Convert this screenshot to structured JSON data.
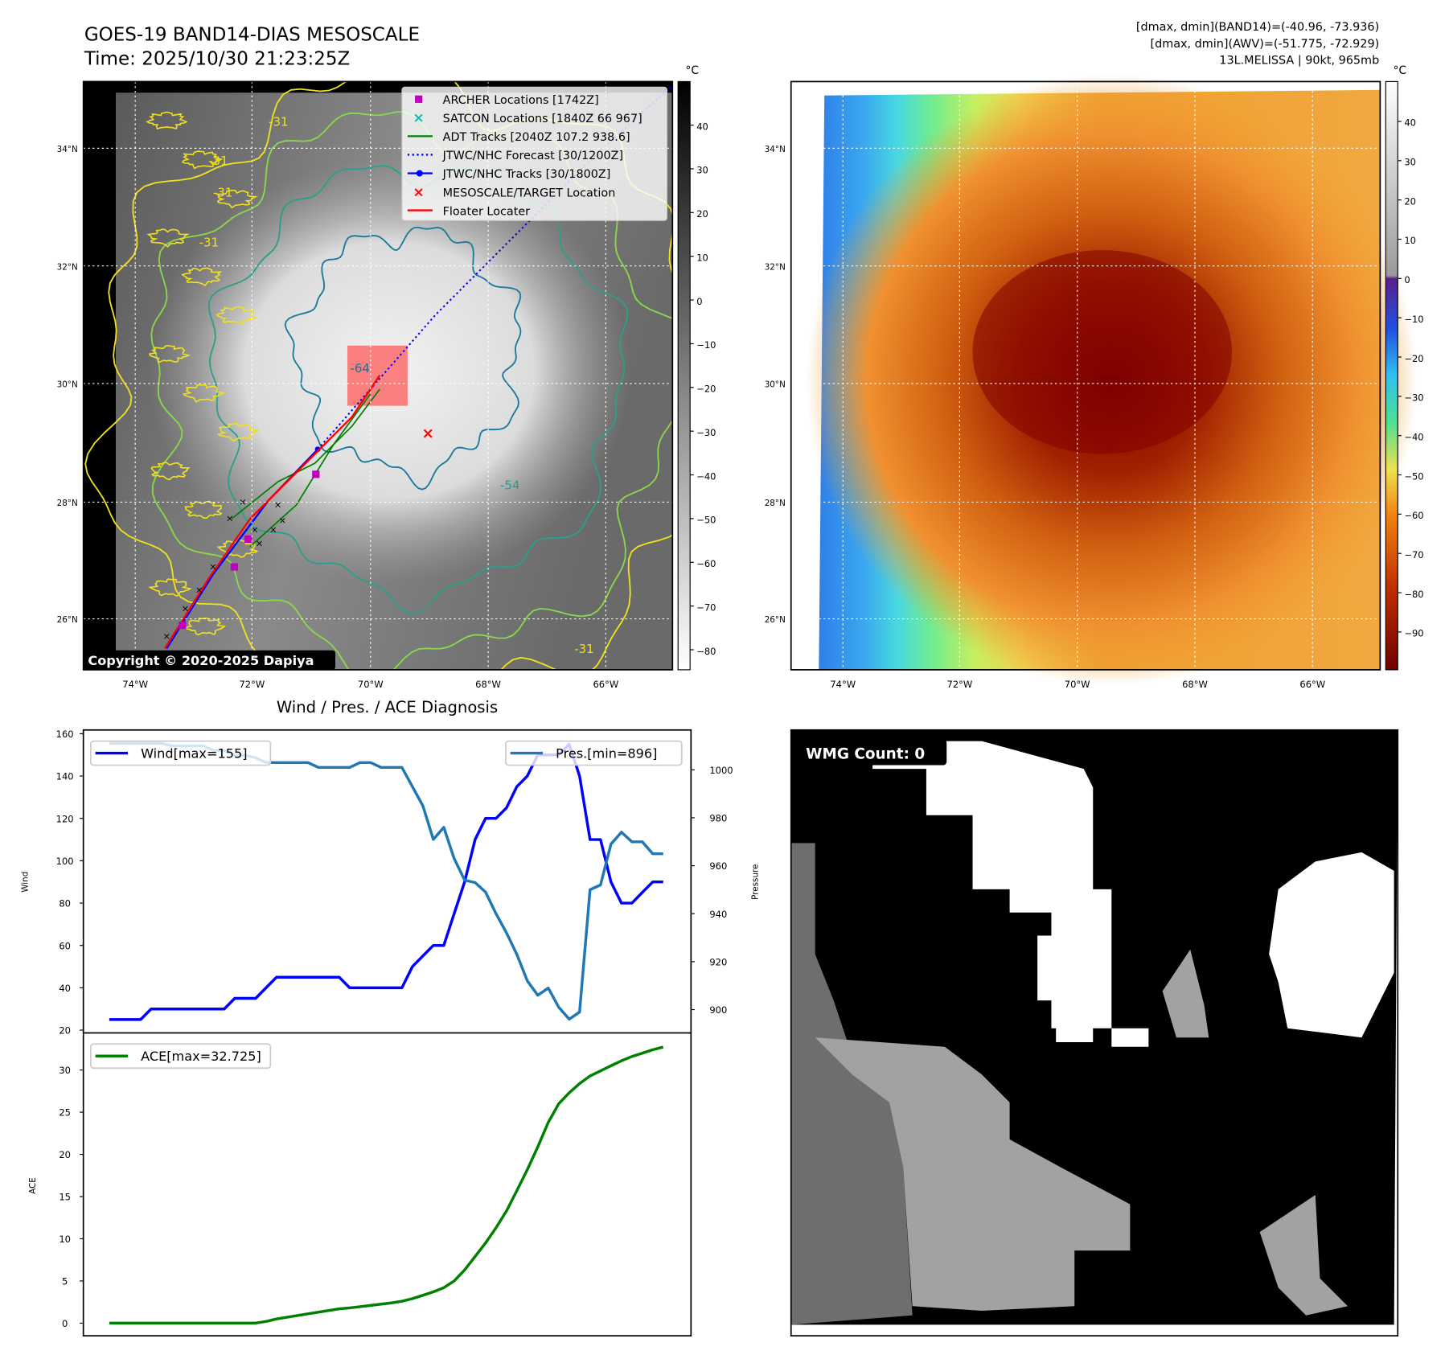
{
  "header": {
    "title": "GOES-19 BAND14-DIAS MESOSCALE",
    "time": "Time: 2025/10/30 21:23:25Z",
    "stats_band14": "[dmax, dmin](BAND14)=(-40.96, -73.936)",
    "stats_awv": "[dmax, dmin](AWV)=(-51.775, -72.929)",
    "storm": "13L.MELISSA | 90kt, 965mb"
  },
  "maps": {
    "lat_labels": [
      "34°N",
      "32°N",
      "30°N",
      "28°N",
      "26°N"
    ],
    "lon_labels": [
      "74°W",
      "72°W",
      "70°W",
      "68°W",
      "66°W"
    ],
    "unit": "°C",
    "copyright": "Copyright © 2020-2025 Dapiya",
    "contour_labels": [
      "-31",
      "-31",
      "-31",
      "-31",
      "-54",
      "-64",
      "-31"
    ],
    "left_colorbar_ticks": [
      "40",
      "30",
      "20",
      "10",
      "0",
      "−10",
      "−20",
      "−30",
      "−40",
      "−50",
      "−60",
      "−70",
      "−80"
    ],
    "right_colorbar_ticks": [
      "40",
      "30",
      "20",
      "10",
      "0",
      "−10",
      "−20",
      "−30",
      "−40",
      "−50",
      "−60",
      "−70",
      "−80",
      "−90"
    ],
    "legend": [
      {
        "label": "ARCHER Locations [1742Z]",
        "color": "#c000c0",
        "marker": "square"
      },
      {
        "label": "SATCON Locations [1840Z 66 967]",
        "color": "#00c0c0",
        "marker": "x"
      },
      {
        "label": "ADT Tracks [2040Z 107.2 938.6]",
        "color": "#008000",
        "marker": "line"
      },
      {
        "label": "JTWC/NHC Forecast [30/1200Z]",
        "color": "#0000ff",
        "marker": "dotted"
      },
      {
        "label": "JTWC/NHC Tracks [30/1800Z]",
        "color": "#0000ff",
        "marker": "line-dot"
      },
      {
        "label": "MESOSCALE/TARGET Location",
        "color": "#ff0000",
        "marker": "x"
      },
      {
        "label": "Floater Locater",
        "color": "#ff0000",
        "marker": "line"
      }
    ]
  },
  "wmg": {
    "label": "WMG Count: 0"
  },
  "chart_data": [
    {
      "type": "line",
      "title": "Wind / Pres. / ACE Diagnosis",
      "ylabel": "Wind",
      "y2label": "Pressure",
      "ylim": [
        18.7,
        161.75
      ],
      "y2lim": [
        890.3,
        1016.6
      ],
      "yticks": [
        20,
        40,
        60,
        80,
        100,
        120,
        140,
        160
      ],
      "y2ticks": [
        900,
        920,
        940,
        960,
        980,
        1000
      ],
      "series": [
        {
          "name": "Wind[max=155]",
          "color": "#0000ff",
          "axis": "left",
          "values": [
            25,
            25,
            25,
            25,
            30,
            30,
            30,
            30,
            30,
            30,
            30,
            30,
            35,
            35,
            35,
            40,
            45,
            45,
            45,
            45,
            45,
            45,
            45,
            40,
            40,
            40,
            40,
            40,
            40,
            50,
            55,
            60,
            60,
            75,
            90,
            110,
            120,
            120,
            125,
            135,
            140,
            150,
            150,
            150,
            155,
            140,
            110,
            110,
            90,
            80,
            80,
            85,
            90,
            90
          ]
        },
        {
          "name": "Pres.[min=896]",
          "color": "#1f77b4",
          "axis": "right",
          "values": [
            1011,
            1011,
            1011,
            1011,
            1011,
            1011,
            1010,
            1010,
            1010,
            1010,
            1008,
            1008,
            1006,
            1006,
            1005,
            1003,
            1003,
            1003,
            1003,
            1003,
            1001,
            1001,
            1001,
            1001,
            1003,
            1003,
            1001,
            1001,
            1001,
            993,
            985,
            971,
            976,
            963,
            954,
            953,
            949,
            940,
            932,
            923,
            912,
            906,
            909,
            901,
            896,
            899,
            950,
            952,
            969,
            974,
            970,
            970,
            965,
            965
          ]
        }
      ]
    },
    {
      "type": "line",
      "ylabel": "ACE",
      "ylim": [
        -1.5,
        34.4
      ],
      "yticks": [
        0,
        5,
        10,
        15,
        20,
        25,
        30
      ],
      "series": [
        {
          "name": "ACE[max=32.725]",
          "color": "#008000",
          "values": [
            0,
            0,
            0,
            0,
            0,
            0,
            0,
            0,
            0,
            0,
            0,
            0,
            0,
            0,
            0,
            0.2,
            0.5,
            0.7,
            0.9,
            1.1,
            1.3,
            1.5,
            1.7,
            1.8,
            1.95,
            2.1,
            2.25,
            2.4,
            2.6,
            2.9,
            3.3,
            3.7,
            4.2,
            5.0,
            6.3,
            7.9,
            9.5,
            11.3,
            13.3,
            15.7,
            18.2,
            20.9,
            23.8,
            26.0,
            27.3,
            28.4,
            29.3,
            29.9,
            30.5,
            31.1,
            31.6,
            32.0,
            32.4,
            32.725
          ]
        }
      ]
    }
  ]
}
